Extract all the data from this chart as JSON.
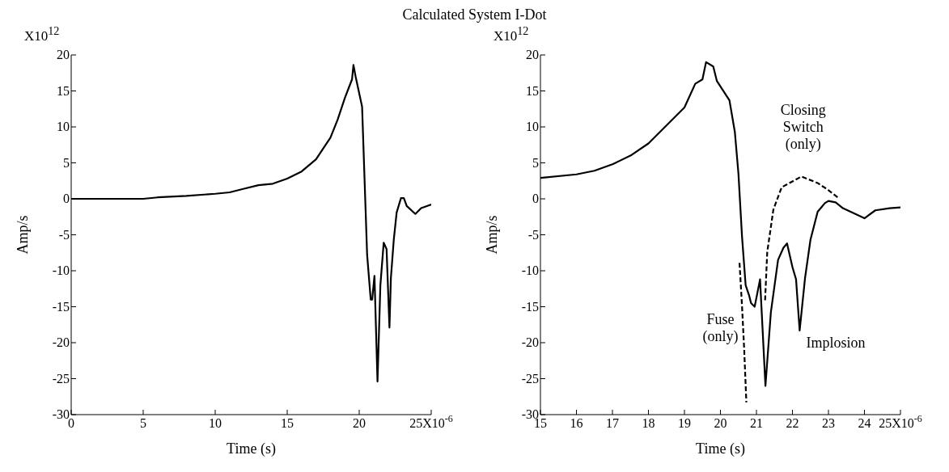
{
  "chart_data": [
    {
      "type": "line",
      "title": "Calculated System I-Dot",
      "xlabel": "Time (s)",
      "ylabel": "Amp/s",
      "annotations": [
        "X10$^{12}$"
      ],
      "xlim": [
        0,
        25
      ],
      "ylim": [
        -30,
        20
      ],
      "xticks": [
        0,
        5,
        10,
        15,
        20,
        {
          "value": 25,
          "label": "25X10$^{-6}$"
        }
      ],
      "yticks": [
        -30,
        -25,
        -20,
        -15,
        -10,
        -5,
        0,
        5,
        10,
        15,
        20
      ],
      "grid": false,
      "legend": false,
      "marker": "none",
      "series": [
        {
          "color": "#000000",
          "line_style": "solid",
          "x": [
            0,
            5,
            6,
            8,
            10,
            11,
            12,
            13,
            14,
            15,
            16,
            17,
            18,
            18.5,
            19,
            19.5,
            19.6,
            19.75,
            20.2,
            20.55,
            20.8,
            20.9,
            21.06,
            21.27,
            21.47,
            21.7,
            21.9,
            22.1,
            22.2,
            22.4,
            22.6,
            22.9,
            23.1,
            23.3,
            23.9,
            24.3,
            25
          ],
          "values": [
            0,
            0,
            0.2,
            0.4,
            0.7,
            0.9,
            1.4,
            1.9,
            2.1,
            2.8,
            3.8,
            5.5,
            8.5,
            11,
            14,
            16.6,
            18.6,
            17,
            12.8,
            -7.8,
            -14,
            -14,
            -10.7,
            -25.4,
            -12,
            -6.1,
            -7,
            -17.9,
            -11,
            -5.7,
            -1.9,
            0.1,
            0.1,
            -1,
            -2.1,
            -1.3,
            -0.8
          ]
        }
      ]
    },
    {
      "type": "line",
      "xlabel": "Time (s)",
      "ylabel": "Amp/s",
      "xlim": [
        15,
        25
      ],
      "ylim": [
        -30,
        20
      ],
      "annotations": [
        "X10$^{12}$",
        "Closing\nSwitch\n(only)",
        "Fuse\n(only)",
        "Implosion"
      ],
      "xticks": [
        15,
        16,
        17,
        18,
        19,
        20,
        21,
        22,
        23,
        24,
        {
          "value": 25,
          "label": "25X10$^{-6}$"
        }
      ],
      "yticks": [
        -30,
        -25,
        -20,
        -15,
        -10,
        -5,
        0,
        5,
        10,
        15,
        20
      ],
      "grid": false,
      "legend": false,
      "marker": "none",
      "series": [
        {
          "color": "#000000",
          "line_style": "solid",
          "x": [
            15,
            16,
            16.5,
            17,
            17.5,
            18,
            18.5,
            19,
            19.3,
            19.5,
            19.6,
            19.8,
            19.9,
            20.25,
            20.4,
            20.5,
            20.6,
            20.7,
            20.8,
            20.85,
            20.95,
            21.1,
            21.25,
            21.4,
            21.6,
            21.75,
            21.85,
            22,
            22.1,
            22.2,
            22.35,
            22.5,
            22.7,
            22.9,
            23,
            23.2,
            23.4,
            23.7,
            24,
            24.3,
            24.7,
            25
          ],
          "values": [
            2.9,
            3.4,
            3.9,
            4.8,
            6,
            7.7,
            10.2,
            12.7,
            16,
            16.6,
            19,
            18.4,
            16.4,
            13.7,
            9.3,
            3.5,
            -5.3,
            -12,
            -13.5,
            -14.5,
            -15,
            -11.2,
            -26,
            -15.8,
            -8.5,
            -6.8,
            -6.2,
            -9.5,
            -11.2,
            -18.3,
            -11,
            -5.7,
            -1.8,
            -0.6,
            -0.3,
            -0.5,
            -1.3,
            -2,
            -2.7,
            -1.6,
            -1.3,
            -1.2
          ]
        },
        {
          "color": "#000000",
          "line_style": "dashed",
          "x": [
            21.24,
            21.3,
            21.47,
            21.7,
            22.25,
            22.7,
            23,
            23.28
          ],
          "values": [
            -14.1,
            -7.4,
            -1.5,
            1.6,
            3.1,
            2.2,
            1.2,
            0.1
          ]
        },
        {
          "color": "#000000",
          "line_style": "dashed",
          "x": [
            20.53,
            20.6,
            20.66,
            20.72
          ],
          "values": [
            -8.9,
            -15,
            -21,
            -28.3
          ]
        }
      ]
    }
  ]
}
